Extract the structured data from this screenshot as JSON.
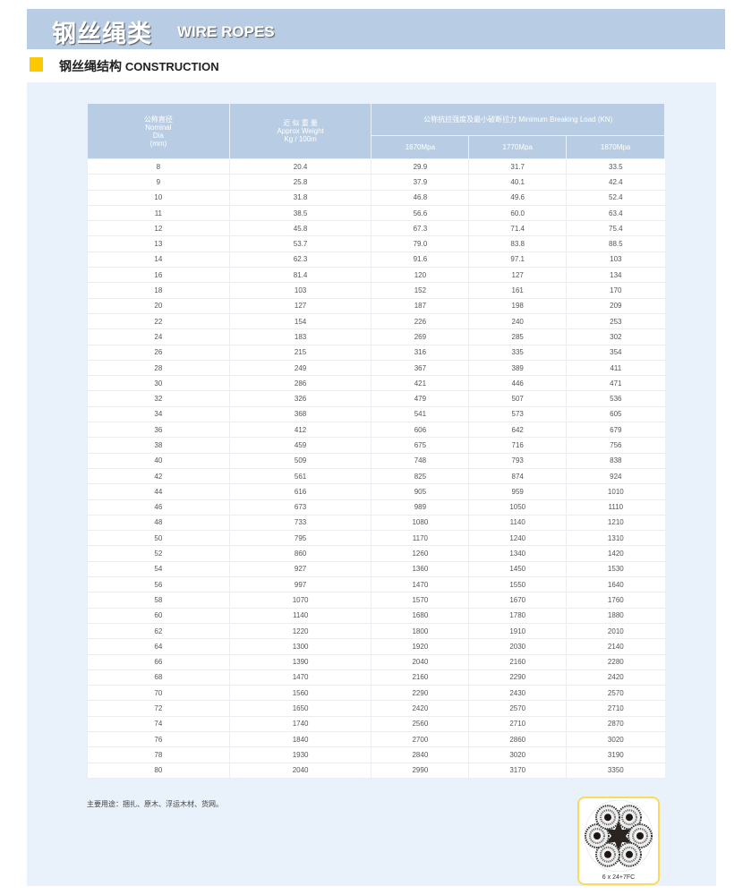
{
  "title": {
    "cn": "钢丝绳类",
    "en": "WIRE ROPES"
  },
  "section": {
    "cn": "钢丝绳结构",
    "en": "CONSTRUCTION"
  },
  "accent": "#fcc800",
  "header_color": "#b8cde4",
  "table": {
    "headers": {
      "dia": [
        "公称直径",
        "Nominal",
        "Dia",
        "(mm)"
      ],
      "weight": [
        "近 似 重 量",
        "Approx Weight",
        "Kg / 100m"
      ],
      "load": "公称抗拉强度及最小破断拉力 Minimum Breaking Load (KN)",
      "grades": [
        "1670Mpa",
        "1770Mpa",
        "1870Mpa"
      ]
    },
    "rows": [
      [
        "8",
        "20.4",
        "29.9",
        "31.7",
        "33.5"
      ],
      [
        "9",
        "25.8",
        "37.9",
        "40.1",
        "42.4"
      ],
      [
        "10",
        "31.8",
        "46.8",
        "49.6",
        "52.4"
      ],
      [
        "11",
        "38.5",
        "56.6",
        "60.0",
        "63.4"
      ],
      [
        "12",
        "45.8",
        "67.3",
        "71.4",
        "75.4"
      ],
      [
        "13",
        "53.7",
        "79.0",
        "83.8",
        "88.5"
      ],
      [
        "14",
        "62.3",
        "91.6",
        "97.1",
        "103"
      ],
      [
        "16",
        "81.4",
        "120",
        "127",
        "134"
      ],
      [
        "18",
        "103",
        "152",
        "161",
        "170"
      ],
      [
        "20",
        "127",
        "187",
        "198",
        "209"
      ],
      [
        "22",
        "154",
        "226",
        "240",
        "253"
      ],
      [
        "24",
        "183",
        "269",
        "285",
        "302"
      ],
      [
        "26",
        "215",
        "316",
        "335",
        "354"
      ],
      [
        "28",
        "249",
        "367",
        "389",
        "411"
      ],
      [
        "30",
        "286",
        "421",
        "446",
        "471"
      ],
      [
        "32",
        "326",
        "479",
        "507",
        "536"
      ],
      [
        "34",
        "368",
        "541",
        "573",
        "605"
      ],
      [
        "36",
        "412",
        "606",
        "642",
        "679"
      ],
      [
        "38",
        "459",
        "675",
        "716",
        "756"
      ],
      [
        "40",
        "509",
        "748",
        "793",
        "838"
      ],
      [
        "42",
        "561",
        "825",
        "874",
        "924"
      ],
      [
        "44",
        "616",
        "905",
        "959",
        "1010"
      ],
      [
        "46",
        "673",
        "989",
        "1050",
        "1110"
      ],
      [
        "48",
        "733",
        "1080",
        "1140",
        "1210"
      ],
      [
        "50",
        "795",
        "1170",
        "1240",
        "1310"
      ],
      [
        "52",
        "860",
        "1260",
        "1340",
        "1420"
      ],
      [
        "54",
        "927",
        "1360",
        "1450",
        "1530"
      ],
      [
        "56",
        "997",
        "1470",
        "1550",
        "1640"
      ],
      [
        "58",
        "1070",
        "1570",
        "1670",
        "1760"
      ],
      [
        "60",
        "1140",
        "1680",
        "1780",
        "1880"
      ],
      [
        "62",
        "1220",
        "1800",
        "1910",
        "2010"
      ],
      [
        "64",
        "1300",
        "1920",
        "2030",
        "2140"
      ],
      [
        "66",
        "1390",
        "2040",
        "2160",
        "2280"
      ],
      [
        "68",
        "1470",
        "2160",
        "2290",
        "2420"
      ],
      [
        "70",
        "1560",
        "2290",
        "2430",
        "2570"
      ],
      [
        "72",
        "1650",
        "2420",
        "2570",
        "2710"
      ],
      [
        "74",
        "1740",
        "2560",
        "2710",
        "2870"
      ],
      [
        "76",
        "1840",
        "2700",
        "2860",
        "3020"
      ],
      [
        "78",
        "1930",
        "2840",
        "3020",
        "3190"
      ],
      [
        "80",
        "2040",
        "2990",
        "3170",
        "3350"
      ]
    ]
  },
  "footnote": "主要用途：捆扎、原木、浮运木材、货网。",
  "diagram": {
    "caption": "6 x 24+7FC",
    "icon": "wire-rope-cross-section"
  }
}
